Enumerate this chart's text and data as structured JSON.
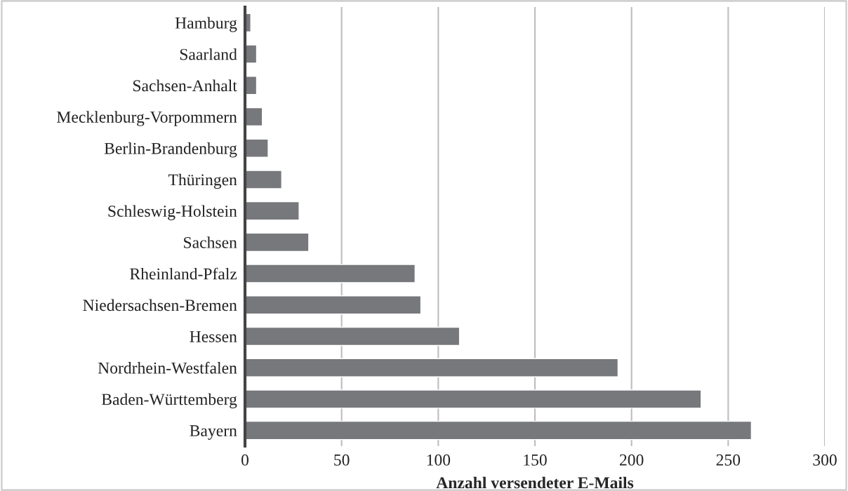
{
  "chart_data": {
    "type": "bar",
    "orientation": "horizontal",
    "xlabel": "Anzahl versendeter E-Mails",
    "categories": [
      "Hamburg",
      "Saarland",
      "Sachsen-Anhalt",
      "Mecklenburg-Vorpommern",
      "Berlin-Brandenburg",
      "Thüringen",
      "Schleswig-Holstein",
      "Sachsen",
      "Rheinland-Pfalz",
      "Niedersachsen-Bremen",
      "Hessen",
      "Nordrhein-Westfalen",
      "Baden-Württemberg",
      "Bayern"
    ],
    "values": [
      3,
      6,
      6,
      9,
      12,
      19,
      28,
      33,
      88,
      91,
      111,
      193,
      236,
      262
    ],
    "color": "#77787b",
    "xlim": [
      0,
      300
    ],
    "xticks": [
      0,
      50,
      100,
      150,
      200,
      250,
      300
    ],
    "grid": "x",
    "legend": false
  }
}
